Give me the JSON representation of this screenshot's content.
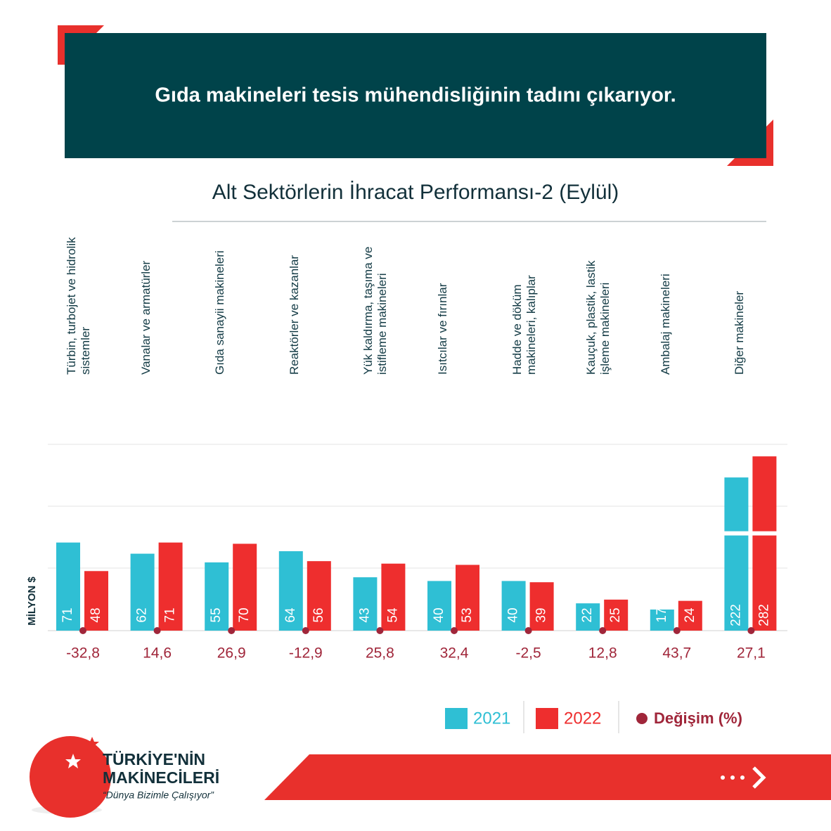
{
  "header": {
    "title": "Gıda makineleri tesis mühendisliğinin tadını çıkarıyor."
  },
  "chart_data": {
    "type": "bar",
    "title": "Alt Sektörlerin İhracat Performansı-2 (Eylül)",
    "y_label": "MİLYON $",
    "categories": [
      "Türbin, turbojet ve hidrolik sistemler",
      "Vanalar  ve armatürler",
      "Gıda sanayii makineleri",
      "Reaktörler ve kazanlar",
      "Yük kaldırma, taşıma ve istifleme makineleri",
      "Isıtcılar ve fırınlar",
      "Hadde ve döküm makineleri, kalıplar",
      "Kauçuk, plastik, lastik işleme makineleri",
      "Ambalaj makineleri",
      "Diğer makineler"
    ],
    "series": [
      {
        "name": "2021",
        "color": "#2fbfd4",
        "values": [
          71,
          62,
          55,
          64,
          43,
          40,
          40,
          22,
          17,
          222
        ]
      },
      {
        "name": "2022",
        "color": "#ee2e2e",
        "values": [
          48,
          71,
          70,
          56,
          54,
          53,
          39,
          25,
          24,
          282
        ]
      },
      {
        "name": "Değişim (%)",
        "type": "dot",
        "color": "#a0263a",
        "values": [
          -32.8,
          14.6,
          26.9,
          -12.9,
          25.8,
          32.4,
          -2.5,
          12.8,
          43.7,
          27.1
        ],
        "value_labels": [
          "-32,8",
          "14,6",
          "26,9",
          "-12,9",
          "25,8",
          "32,4",
          "-2,5",
          "12,8",
          "43,7",
          "27,1"
        ]
      }
    ]
  },
  "footer": {
    "brand_line1": "TÜRKİYE'NİN",
    "brand_line2": "MAKİNECİLERİ",
    "tagline": "“Dünya Bizimle Çalışıyor”"
  }
}
